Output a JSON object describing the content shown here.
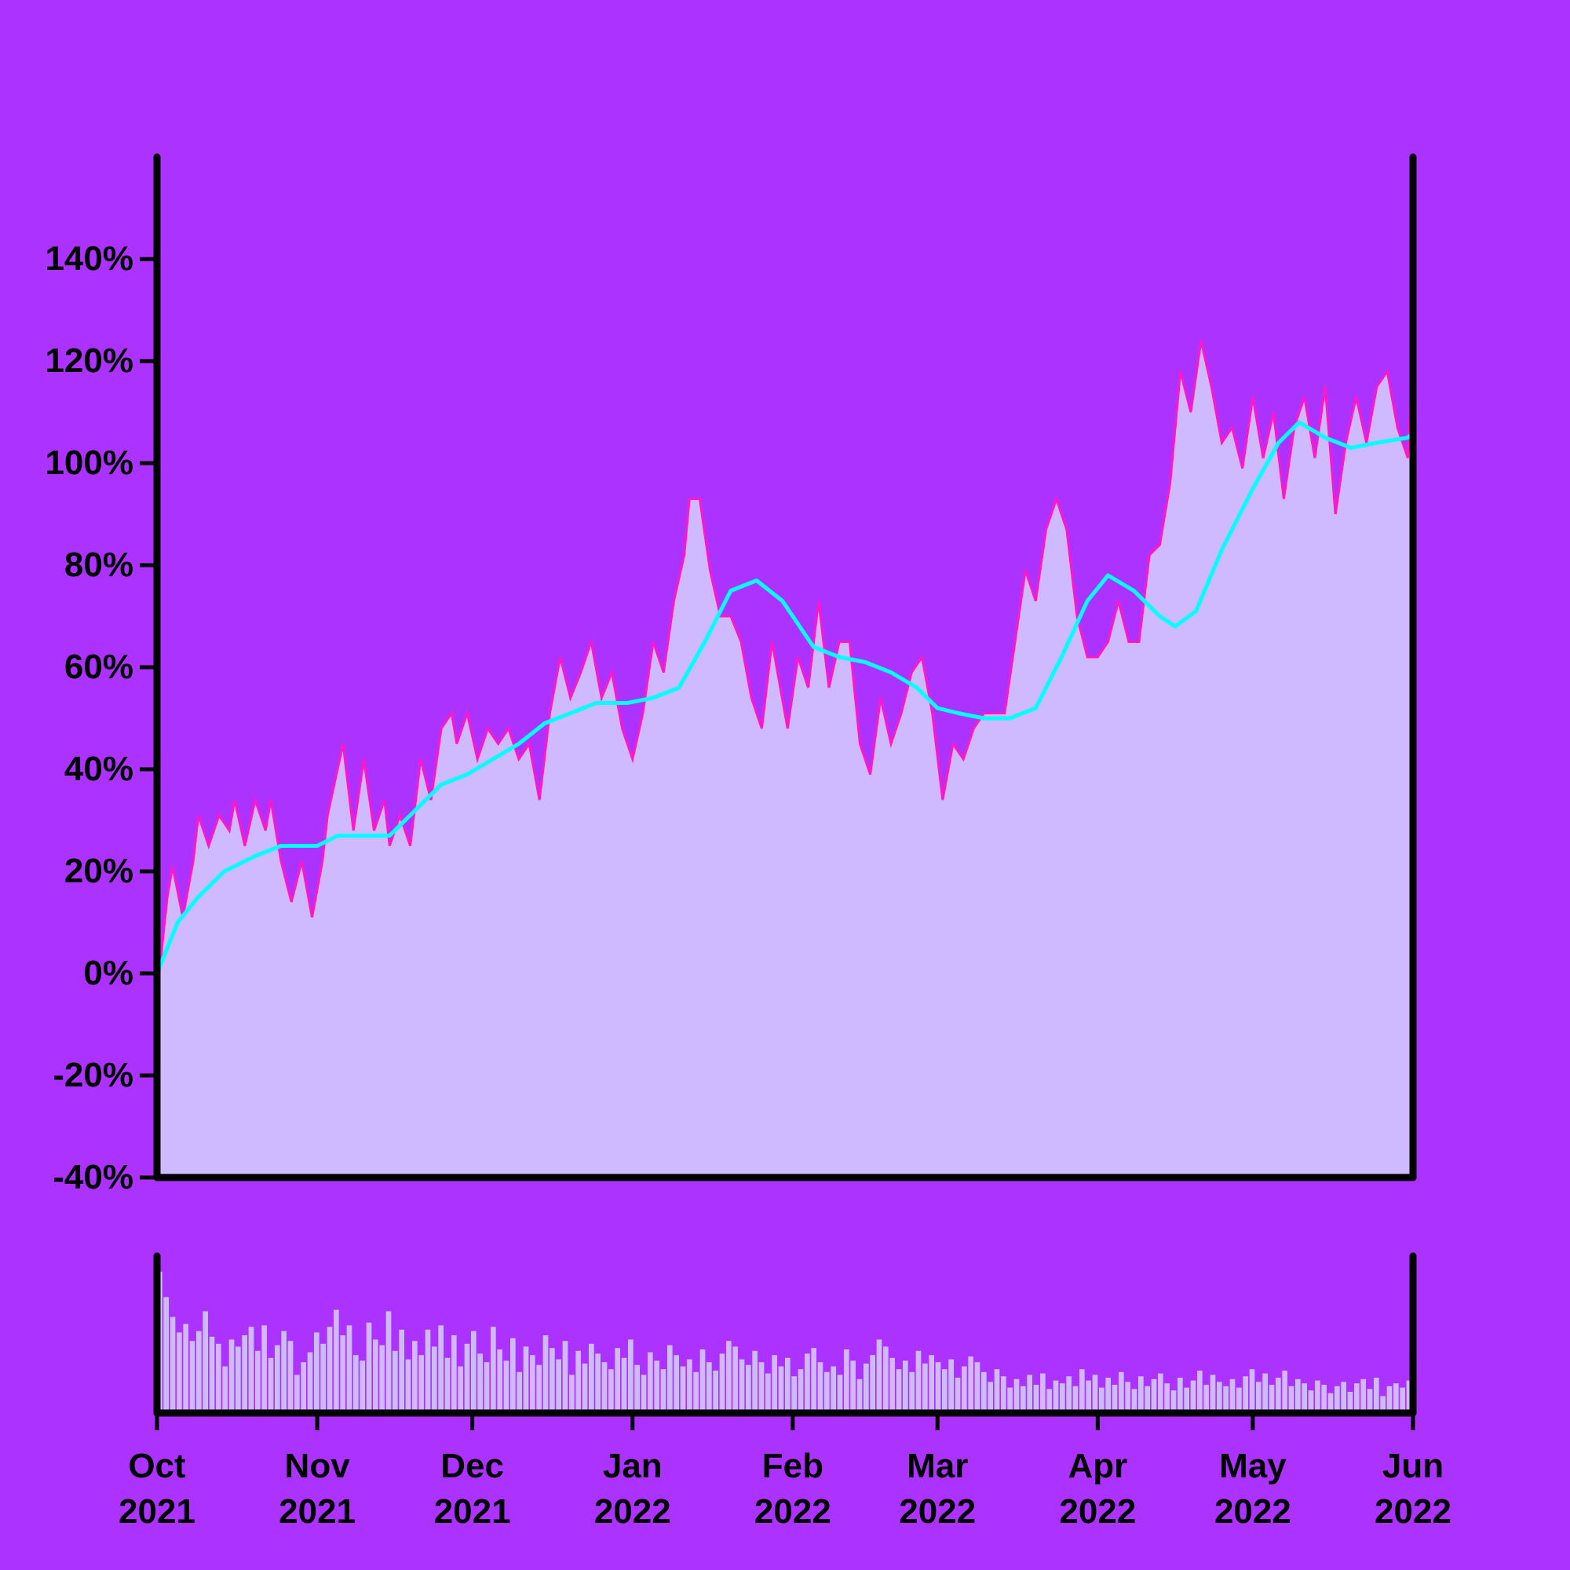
{
  "colors": {
    "background": "#AC33FF",
    "area_fill": "#D0BAFF",
    "price_line": "#FF18C8",
    "moving_average_line": "#00FFFF",
    "volume_fill": "#D0BAFF",
    "axis": "#000000"
  },
  "chart_data": [
    {
      "type": "area",
      "x_start": "2021-10-01",
      "x_end": "2022-06-01",
      "ylim": [
        -40,
        160
      ],
      "grid": false,
      "legend": "none",
      "y_ticks": [
        {
          "value": -40,
          "label": "-40%"
        },
        {
          "value": -20,
          "label": "-20%"
        },
        {
          "value": 0,
          "label": "0%"
        },
        {
          "value": 20,
          "label": "20%"
        },
        {
          "value": 40,
          "label": "40%"
        },
        {
          "value": 60,
          "label": "60%"
        },
        {
          "value": 80,
          "label": "80%"
        },
        {
          "value": 100,
          "label": "100%"
        },
        {
          "value": 120,
          "label": "120%"
        },
        {
          "value": 140,
          "label": "140%"
        }
      ],
      "x_ticks": [
        {
          "date": "2021-10-01",
          "month": "Oct",
          "year": "2021"
        },
        {
          "date": "2021-11-01",
          "month": "Nov",
          "year": "2021"
        },
        {
          "date": "2021-12-01",
          "month": "Dec",
          "year": "2021"
        },
        {
          "date": "2022-01-01",
          "month": "Jan",
          "year": "2022"
        },
        {
          "date": "2022-02-01",
          "month": "Feb",
          "year": "2022"
        },
        {
          "date": "2022-03-01",
          "month": "Mar",
          "year": "2022"
        },
        {
          "date": "2022-04-01",
          "month": "Apr",
          "year": "2022"
        },
        {
          "date": "2022-05-01",
          "month": "May",
          "year": "2022"
        },
        {
          "date": "2022-06-01",
          "month": "Jun",
          "year": "2022"
        }
      ],
      "series": [
        {
          "style": "area-with-line",
          "points": [
            [
              "2021-10-01",
              -4
            ],
            [
              "2021-10-03",
              15
            ],
            [
              "2021-10-04",
              21
            ],
            [
              "2021-10-06",
              11
            ],
            [
              "2021-10-08",
              22
            ],
            [
              "2021-10-09",
              31
            ],
            [
              "2021-10-11",
              25
            ],
            [
              "2021-10-13",
              31
            ],
            [
              "2021-10-15",
              28
            ],
            [
              "2021-10-16",
              34
            ],
            [
              "2021-10-18",
              25
            ],
            [
              "2021-10-20",
              34
            ],
            [
              "2021-10-22",
              28
            ],
            [
              "2021-10-23",
              34
            ],
            [
              "2021-10-25",
              22
            ],
            [
              "2021-10-27",
              14
            ],
            [
              "2021-10-29",
              22
            ],
            [
              "2021-10-31",
              11
            ],
            [
              "2021-11-02",
              22
            ],
            [
              "2021-11-03",
              31
            ],
            [
              "2021-11-06",
              45
            ],
            [
              "2021-11-08",
              28
            ],
            [
              "2021-11-10",
              42
            ],
            [
              "2021-11-12",
              28
            ],
            [
              "2021-11-14",
              34
            ],
            [
              "2021-11-15",
              25
            ],
            [
              "2021-11-17",
              31
            ],
            [
              "2021-11-19",
              25
            ],
            [
              "2021-11-21",
              42
            ],
            [
              "2021-11-23",
              34
            ],
            [
              "2021-11-25",
              48
            ],
            [
              "2021-11-27",
              51
            ],
            [
              "2021-11-28",
              45
            ],
            [
              "2021-11-30",
              51
            ],
            [
              "2021-12-02",
              42
            ],
            [
              "2021-12-04",
              48
            ],
            [
              "2021-12-06",
              45
            ],
            [
              "2021-12-08",
              48
            ],
            [
              "2021-12-10",
              42
            ],
            [
              "2021-12-12",
              45
            ],
            [
              "2021-12-14",
              34
            ],
            [
              "2021-12-16",
              51
            ],
            [
              "2021-12-18",
              62
            ],
            [
              "2021-12-20",
              54
            ],
            [
              "2021-12-22",
              59
            ],
            [
              "2021-12-24",
              65
            ],
            [
              "2021-12-26",
              54
            ],
            [
              "2021-12-28",
              59
            ],
            [
              "2021-12-30",
              48
            ],
            [
              "2022-01-01",
              42
            ],
            [
              "2022-01-03",
              51
            ],
            [
              "2022-01-05",
              65
            ],
            [
              "2022-01-07",
              59
            ],
            [
              "2022-01-09",
              73
            ],
            [
              "2022-01-11",
              82
            ],
            [
              "2022-01-12",
              93
            ],
            [
              "2022-01-14",
              93
            ],
            [
              "2022-01-16",
              79
            ],
            [
              "2022-01-18",
              70
            ],
            [
              "2022-01-20",
              70
            ],
            [
              "2022-01-22",
              65
            ],
            [
              "2022-01-24",
              54
            ],
            [
              "2022-01-26",
              48
            ],
            [
              "2022-01-28",
              65
            ],
            [
              "2022-01-31",
              48
            ],
            [
              "2022-02-02",
              62
            ],
            [
              "2022-02-04",
              56
            ],
            [
              "2022-02-06",
              73
            ],
            [
              "2022-02-08",
              56
            ],
            [
              "2022-02-10",
              65
            ],
            [
              "2022-02-12",
              65
            ],
            [
              "2022-02-14",
              45
            ],
            [
              "2022-02-16",
              39
            ],
            [
              "2022-02-18",
              54
            ],
            [
              "2022-02-20",
              45
            ],
            [
              "2022-02-22",
              51
            ],
            [
              "2022-02-24",
              59
            ],
            [
              "2022-02-26",
              62
            ],
            [
              "2022-02-28",
              51
            ],
            [
              "2022-03-02",
              34
            ],
            [
              "2022-03-04",
              45
            ],
            [
              "2022-03-06",
              42
            ],
            [
              "2022-03-08",
              48
            ],
            [
              "2022-03-10",
              51
            ],
            [
              "2022-03-12",
              51
            ],
            [
              "2022-03-14",
              51
            ],
            [
              "2022-03-16",
              65
            ],
            [
              "2022-03-18",
              79
            ],
            [
              "2022-03-20",
              73
            ],
            [
              "2022-03-22",
              87
            ],
            [
              "2022-03-24",
              93
            ],
            [
              "2022-03-26",
              87
            ],
            [
              "2022-03-28",
              70
            ],
            [
              "2022-03-30",
              62
            ],
            [
              "2022-04-01",
              62
            ],
            [
              "2022-04-03",
              65
            ],
            [
              "2022-04-05",
              73
            ],
            [
              "2022-04-07",
              65
            ],
            [
              "2022-04-09",
              65
            ],
            [
              "2022-04-11",
              82
            ],
            [
              "2022-04-13",
              84
            ],
            [
              "2022-04-15",
              96
            ],
            [
              "2022-04-17",
              118
            ],
            [
              "2022-04-19",
              110
            ],
            [
              "2022-04-21",
              124
            ],
            [
              "2022-04-23",
              115
            ],
            [
              "2022-04-25",
              104
            ],
            [
              "2022-04-27",
              107
            ],
            [
              "2022-04-29",
              99
            ],
            [
              "2022-05-01",
              113
            ],
            [
              "2022-05-03",
              101
            ],
            [
              "2022-05-05",
              110
            ],
            [
              "2022-05-07",
              93
            ],
            [
              "2022-05-09",
              107
            ],
            [
              "2022-05-11",
              113
            ],
            [
              "2022-05-13",
              101
            ],
            [
              "2022-05-15",
              115
            ],
            [
              "2022-05-17",
              90
            ],
            [
              "2022-05-19",
              104
            ],
            [
              "2022-05-21",
              113
            ],
            [
              "2022-05-23",
              104
            ],
            [
              "2022-05-25",
              115
            ],
            [
              "2022-05-27",
              118
            ],
            [
              "2022-05-29",
              107
            ],
            [
              "2022-05-31",
              101
            ],
            [
              "2022-06-01",
              121
            ]
          ]
        },
        {
          "style": "line",
          "points": [
            [
              "2021-10-01",
              0
            ],
            [
              "2021-10-05",
              10
            ],
            [
              "2021-10-09",
              15
            ],
            [
              "2021-10-14",
              20
            ],
            [
              "2021-10-20",
              23
            ],
            [
              "2021-10-25",
              25
            ],
            [
              "2021-11-01",
              25
            ],
            [
              "2021-11-05",
              27
            ],
            [
              "2021-11-10",
              27
            ],
            [
              "2021-11-15",
              27
            ],
            [
              "2021-11-20",
              32
            ],
            [
              "2021-11-25",
              37
            ],
            [
              "2021-11-30",
              39
            ],
            [
              "2021-12-05",
              42
            ],
            [
              "2021-12-10",
              45
            ],
            [
              "2021-12-15",
              49
            ],
            [
              "2021-12-20",
              51
            ],
            [
              "2021-12-25",
              53
            ],
            [
              "2021-12-31",
              53
            ],
            [
              "2022-01-05",
              54
            ],
            [
              "2022-01-10",
              56
            ],
            [
              "2022-01-15",
              65
            ],
            [
              "2022-01-20",
              75
            ],
            [
              "2022-01-25",
              77
            ],
            [
              "2022-01-30",
              73
            ],
            [
              "2022-02-05",
              64
            ],
            [
              "2022-02-10",
              62
            ],
            [
              "2022-02-15",
              61
            ],
            [
              "2022-02-20",
              59
            ],
            [
              "2022-02-25",
              56
            ],
            [
              "2022-03-01",
              52
            ],
            [
              "2022-03-05",
              51
            ],
            [
              "2022-03-10",
              50
            ],
            [
              "2022-03-15",
              50
            ],
            [
              "2022-03-20",
              52
            ],
            [
              "2022-03-25",
              62
            ],
            [
              "2022-03-30",
              73
            ],
            [
              "2022-04-03",
              78
            ],
            [
              "2022-04-08",
              75
            ],
            [
              "2022-04-13",
              70
            ],
            [
              "2022-04-16",
              68
            ],
            [
              "2022-04-20",
              71
            ],
            [
              "2022-04-25",
              83
            ],
            [
              "2022-05-01",
              95
            ],
            [
              "2022-05-06",
              104
            ],
            [
              "2022-05-10",
              108
            ],
            [
              "2022-05-15",
              105
            ],
            [
              "2022-05-20",
              103
            ],
            [
              "2022-05-25",
              104
            ],
            [
              "2022-05-31",
              105
            ],
            [
              "2022-06-01",
              106
            ]
          ]
        }
      ]
    },
    {
      "type": "bar",
      "x_start": "2021-10-01",
      "x_end": "2022-06-01",
      "values": [
        1.0,
        0.82,
        0.68,
        0.57,
        0.63,
        0.51,
        0.58,
        0.72,
        0.54,
        0.49,
        0.33,
        0.52,
        0.47,
        0.55,
        0.61,
        0.44,
        0.62,
        0.39,
        0.48,
        0.58,
        0.51,
        0.27,
        0.36,
        0.43,
        0.57,
        0.49,
        0.61,
        0.73,
        0.55,
        0.62,
        0.41,
        0.37,
        0.64,
        0.52,
        0.48,
        0.72,
        0.44,
        0.59,
        0.38,
        0.51,
        0.41,
        0.59,
        0.47,
        0.62,
        0.39,
        0.55,
        0.33,
        0.49,
        0.58,
        0.42,
        0.36,
        0.61,
        0.45,
        0.37,
        0.53,
        0.29,
        0.47,
        0.41,
        0.34,
        0.55,
        0.46,
        0.38,
        0.51,
        0.27,
        0.44,
        0.35,
        0.49,
        0.42,
        0.36,
        0.31,
        0.46,
        0.39,
        0.52,
        0.34,
        0.27,
        0.43,
        0.37,
        0.31,
        0.48,
        0.41,
        0.33,
        0.38,
        0.29,
        0.45,
        0.36,
        0.3,
        0.42,
        0.51,
        0.47,
        0.38,
        0.34,
        0.44,
        0.36,
        0.28,
        0.41,
        0.33,
        0.39,
        0.26,
        0.31,
        0.42,
        0.46,
        0.36,
        0.29,
        0.33,
        0.27,
        0.45,
        0.37,
        0.24,
        0.35,
        0.41,
        0.52,
        0.47,
        0.39,
        0.31,
        0.37,
        0.29,
        0.44,
        0.35,
        0.41,
        0.36,
        0.31,
        0.38,
        0.25,
        0.33,
        0.4,
        0.36,
        0.29,
        0.22,
        0.31,
        0.26,
        0.18,
        0.24,
        0.19,
        0.27,
        0.2,
        0.28,
        0.17,
        0.23,
        0.21,
        0.26,
        0.19,
        0.31,
        0.23,
        0.27,
        0.18,
        0.25,
        0.2,
        0.29,
        0.22,
        0.17,
        0.26,
        0.19,
        0.24,
        0.28,
        0.21,
        0.16,
        0.25,
        0.18,
        0.23,
        0.3,
        0.2,
        0.27,
        0.22,
        0.19,
        0.24,
        0.18,
        0.26,
        0.31,
        0.22,
        0.28,
        0.2,
        0.25,
        0.3,
        0.19,
        0.24,
        0.21,
        0.16,
        0.23,
        0.2,
        0.14,
        0.19,
        0.22,
        0.15,
        0.21,
        0.24,
        0.17,
        0.25,
        0.12,
        0.19,
        0.21,
        0.18,
        0.23
      ]
    }
  ]
}
